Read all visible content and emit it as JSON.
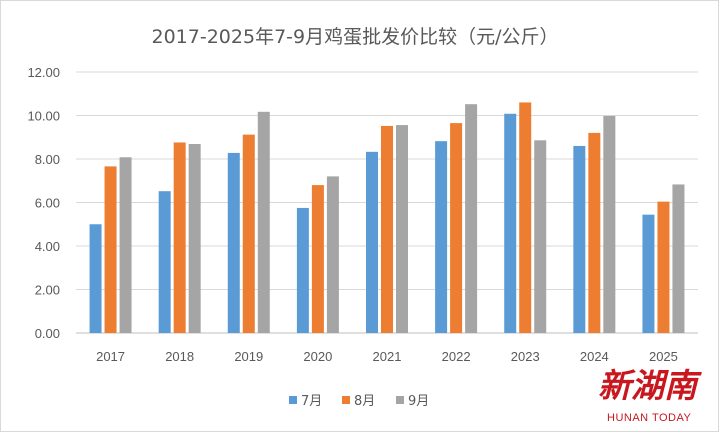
{
  "chart_data": {
    "type": "bar",
    "title": "2017-2025年7-9月鸡蛋批发价比较（元/公斤）",
    "xlabel": "",
    "ylabel": "",
    "categories": [
      "2017",
      "2018",
      "2019",
      "2020",
      "2021",
      "2022",
      "2023",
      "2024",
      "2025"
    ],
    "series": [
      {
        "name": "7月",
        "color": "#5b9bd5",
        "values": [
          5.0,
          6.52,
          8.28,
          5.75,
          8.33,
          8.82,
          10.08,
          8.6,
          5.44
        ]
      },
      {
        "name": "8月",
        "color": "#ed7d31",
        "values": [
          7.66,
          8.76,
          9.12,
          6.8,
          9.52,
          9.65,
          10.6,
          9.2,
          6.04
        ]
      },
      {
        "name": "9月",
        "color": "#a5a5a5",
        "values": [
          8.08,
          8.69,
          10.17,
          7.2,
          9.56,
          10.52,
          8.86,
          9.98,
          6.83
        ]
      }
    ],
    "ylim": [
      0,
      12
    ],
    "yticks": [
      "0.00",
      "2.00",
      "4.00",
      "6.00",
      "8.00",
      "10.00",
      "12.00"
    ],
    "grid": true,
    "legend_position": "bottom"
  },
  "watermark": {
    "logo_text": "新湖南",
    "sub_text": "HUNAN TODAY",
    "color": "#c8171e"
  }
}
